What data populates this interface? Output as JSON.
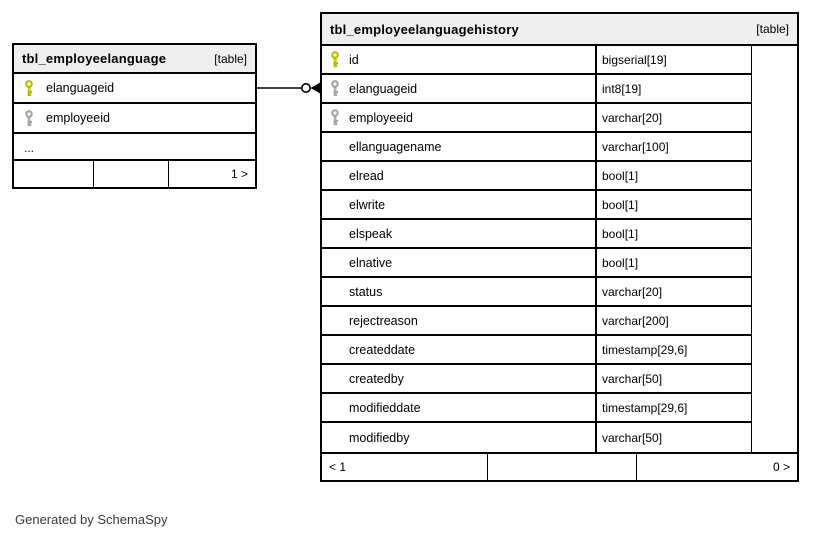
{
  "footer_note": "Generated by SchemaSpy",
  "colors": {
    "primary_key": "#e3e30a",
    "primary_key_outline": "#9e9e00",
    "foreign_key": "#c6c6c6",
    "foreign_key_outline": "#8f8f8f",
    "header_bg": "#efefef",
    "border": "#000000"
  },
  "tables": {
    "left": {
      "title": "tbl_employeelanguage",
      "tag": "[table]",
      "columns": [
        {
          "key": "pk",
          "name": "elanguageid"
        },
        {
          "key": "fk",
          "name": "employeeid"
        }
      ],
      "ellipsis": "...",
      "footer": {
        "left": "",
        "middle": "",
        "right": "1 >"
      }
    },
    "right": {
      "title": "tbl_employeelanguagehistory",
      "tag": "[table]",
      "columns": [
        {
          "key": "pk",
          "name": "id",
          "type": "bigserial[19]"
        },
        {
          "key": "fk",
          "name": "elanguageid",
          "type": "int8[19]"
        },
        {
          "key": "fk",
          "name": "employeeid",
          "type": "varchar[20]"
        },
        {
          "key": null,
          "name": "ellanguagename",
          "type": "varchar[100]"
        },
        {
          "key": null,
          "name": "elread",
          "type": "bool[1]"
        },
        {
          "key": null,
          "name": "elwrite",
          "type": "bool[1]"
        },
        {
          "key": null,
          "name": "elspeak",
          "type": "bool[1]"
        },
        {
          "key": null,
          "name": "elnative",
          "type": "bool[1]"
        },
        {
          "key": null,
          "name": "status",
          "type": "varchar[20]"
        },
        {
          "key": null,
          "name": "rejectreason",
          "type": "varchar[200]"
        },
        {
          "key": null,
          "name": "createddate",
          "type": "timestamp[29,6]"
        },
        {
          "key": null,
          "name": "createdby",
          "type": "varchar[50]"
        },
        {
          "key": null,
          "name": "modifieddate",
          "type": "timestamp[29,6]"
        },
        {
          "key": null,
          "name": "modifiedby",
          "type": "varchar[50]"
        }
      ],
      "footer": {
        "left": "< 1",
        "middle": "",
        "right": "0 >"
      }
    }
  }
}
